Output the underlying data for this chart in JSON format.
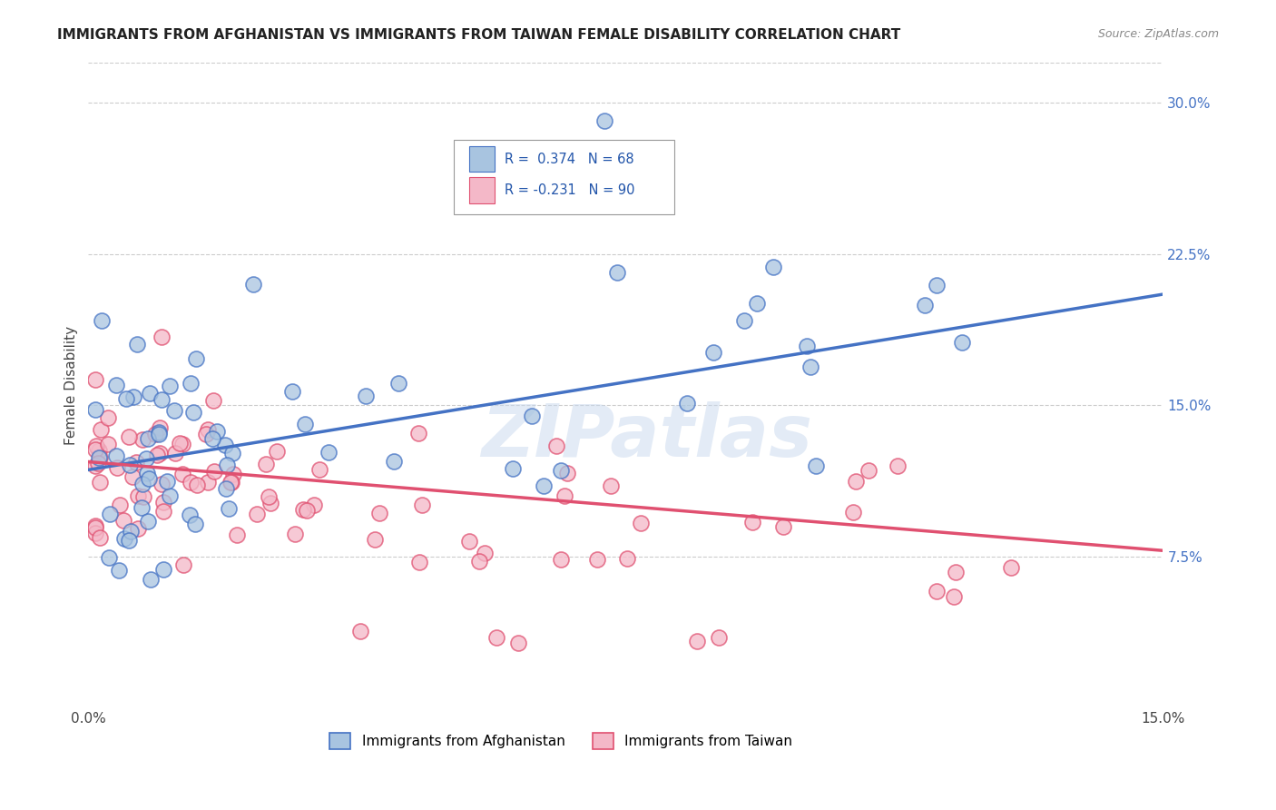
{
  "title": "IMMIGRANTS FROM AFGHANISTAN VS IMMIGRANTS FROM TAIWAN FEMALE DISABILITY CORRELATION CHART",
  "source": "Source: ZipAtlas.com",
  "ylabel": "Female Disability",
  "right_yticks": [
    "7.5%",
    "15.0%",
    "22.5%",
    "30.0%"
  ],
  "right_ytick_vals": [
    0.075,
    0.15,
    0.225,
    0.3
  ],
  "xlim": [
    0.0,
    0.15
  ],
  "ylim": [
    0.0,
    0.32
  ],
  "afghanistan_R": 0.374,
  "afghanistan_N": 68,
  "taiwan_R": -0.231,
  "taiwan_N": 90,
  "afghanistan_color": "#a8c4e0",
  "taiwan_color": "#f4b8c8",
  "trend_afghanistan_color": "#4472C4",
  "trend_taiwan_color": "#e05070",
  "watermark": "ZIPatlas",
  "legend_afghanistan": "Immigrants from Afghanistan",
  "legend_taiwan": "Immigrants from Taiwan",
  "afg_trend_x0": 0.0,
  "afg_trend_y0": 0.118,
  "afg_trend_x1": 0.15,
  "afg_trend_y1": 0.205,
  "tai_trend_x0": 0.0,
  "tai_trend_y0": 0.122,
  "tai_trend_x1": 0.15,
  "tai_trend_y1": 0.078
}
